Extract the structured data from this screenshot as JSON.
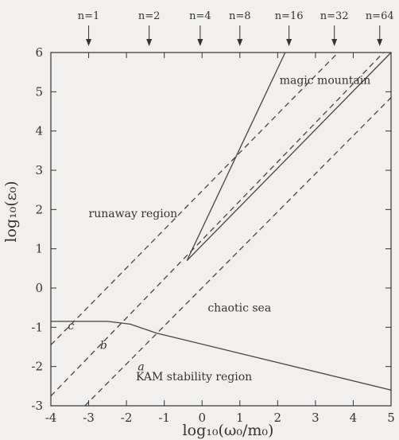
{
  "chart_data": {
    "type": "line",
    "title": "",
    "xlabel": "log₁₀(ω₀/m₀)",
    "ylabel": "log₁₀(ε₀)",
    "xlim": [
      -4,
      5
    ],
    "ylim": [
      -3,
      6
    ],
    "grid": false,
    "x_ticks": [
      "-4",
      "-3",
      "-2",
      "-1",
      "0",
      "1",
      "2",
      "3",
      "4",
      "5"
    ],
    "y_ticks": [
      "-3",
      "-2",
      "-1",
      "0",
      "1",
      "2",
      "3",
      "4",
      "5",
      "6"
    ],
    "top_markers": [
      {
        "label": "n=1",
        "x": -3.0
      },
      {
        "label": "n=2",
        "x": -1.4
      },
      {
        "label": "n=4",
        "x": -0.05
      },
      {
        "label": "n=8",
        "x": 1.0
      },
      {
        "label": "n=16",
        "x": 2.3
      },
      {
        "label": "n=32",
        "x": 3.5
      },
      {
        "label": "n=64",
        "x": 4.7
      }
    ],
    "series": [
      {
        "style": "solid",
        "points": [
          [
            -4,
            -0.85
          ],
          [
            -2.5,
            -0.85
          ],
          [
            -1.9,
            -0.92
          ],
          [
            -1.2,
            -1.15
          ],
          [
            5,
            -2.6
          ]
        ]
      },
      {
        "style": "solid",
        "points": [
          [
            -0.4,
            0.7
          ],
          [
            2.2,
            6.0
          ]
        ]
      },
      {
        "style": "solid",
        "points": [
          [
            -0.4,
            0.7
          ],
          [
            5,
            6.0
          ]
        ]
      },
      {
        "style": "dashed",
        "points": [
          [
            -4,
            -1.45
          ],
          [
            3.6,
            6.0
          ]
        ]
      },
      {
        "style": "dashed",
        "points": [
          [
            -4,
            -2.75
          ],
          [
            4.8,
            6.0
          ]
        ]
      },
      {
        "style": "dashed",
        "points": [
          [
            -3.1,
            -3.0
          ],
          [
            5,
            4.85
          ]
        ]
      }
    ],
    "annotations": [
      {
        "text": "runaway region",
        "x": -3.0,
        "y": 1.8
      },
      {
        "text": "magic mountain",
        "x": 2.05,
        "y": 5.2
      },
      {
        "text": "chaotic sea",
        "x": 0.15,
        "y": -0.6
      },
      {
        "text": "KAM stability region",
        "x": -1.75,
        "y": -2.35
      },
      {
        "text": "c",
        "x": -3.55,
        "y": -1.05
      },
      {
        "text": "b",
        "x": -2.7,
        "y": -1.55
      },
      {
        "text": "a",
        "x": -1.7,
        "y": -2.1
      }
    ]
  }
}
